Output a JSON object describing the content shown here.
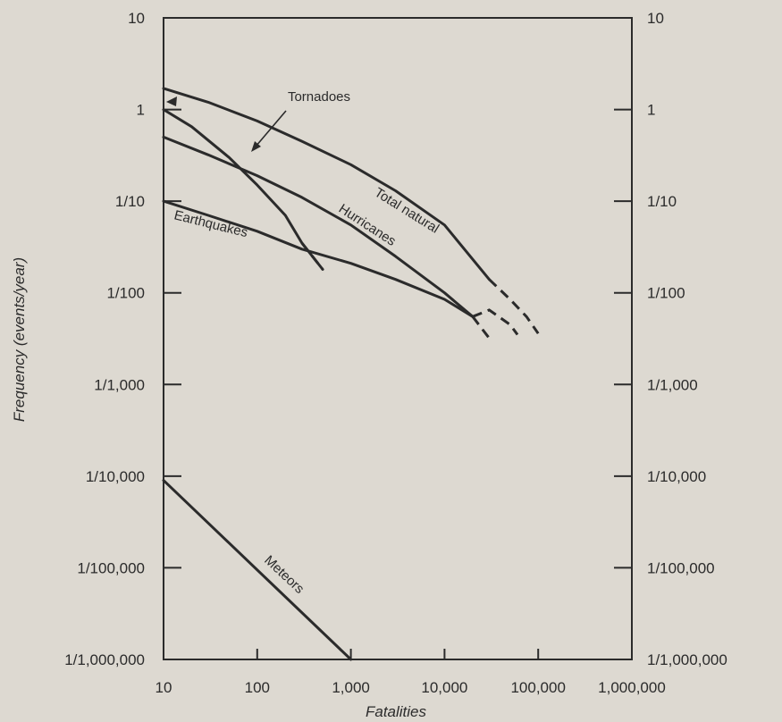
{
  "chart_data": {
    "type": "line",
    "title": "",
    "xlabel": "Fatalities",
    "ylabel": "Frequency (events/year)",
    "x_scale": "log",
    "y_scale": "log",
    "xlim": [
      10,
      1000000
    ],
    "ylim": [
      1e-06,
      10
    ],
    "x_ticks": [
      {
        "value": 10,
        "label": "10"
      },
      {
        "value": 100,
        "label": "100"
      },
      {
        "value": 1000,
        "label": "1,000"
      },
      {
        "value": 10000,
        "label": "10,000"
      },
      {
        "value": 100000,
        "label": "100,000"
      },
      {
        "value": 1000000,
        "label": "1,000,000"
      }
    ],
    "y_ticks": [
      {
        "value": 10,
        "label": "10"
      },
      {
        "value": 1,
        "label": "1"
      },
      {
        "value": 0.1,
        "label": "1/10"
      },
      {
        "value": 0.01,
        "label": "1/100"
      },
      {
        "value": 0.001,
        "label": "1/1,000"
      },
      {
        "value": 0.0001,
        "label": "1/10,000"
      },
      {
        "value": 1e-05,
        "label": "1/100,000"
      },
      {
        "value": 1e-06,
        "label": "1/1,000,000"
      }
    ],
    "grid": false,
    "series": [
      {
        "name": "Total natural",
        "x": [
          10,
          30,
          100,
          300,
          1000,
          3000,
          10000,
          30000
        ],
        "y": [
          1.7,
          1.2,
          0.75,
          0.45,
          0.25,
          0.13,
          0.055,
          0.014
        ],
        "dashed_x": [
          30000,
          50000,
          75000,
          100000
        ],
        "dashed_y": [
          0.014,
          0.0085,
          0.0055,
          0.0036
        ]
      },
      {
        "name": "Hurricanes",
        "x": [
          10,
          30,
          100,
          300,
          1000,
          3000,
          10000,
          20000
        ],
        "y": [
          0.5,
          0.32,
          0.19,
          0.11,
          0.055,
          0.025,
          0.01,
          0.0055
        ],
        "dashed_x": [
          20000,
          30000,
          50000,
          60000
        ],
        "dashed_y": [
          0.0055,
          0.0065,
          0.0045,
          0.0035
        ]
      },
      {
        "name": "Tornadoes",
        "x": [
          10,
          20,
          50,
          100,
          200,
          300,
          500
        ],
        "y": [
          1,
          0.65,
          0.3,
          0.15,
          0.07,
          0.035,
          0.018
        ],
        "dashed_x": [
          300,
          500
        ],
        "dashed_y": [
          0.035,
          0.018
        ]
      },
      {
        "name": "Earthquakes",
        "x": [
          10,
          30,
          100,
          300,
          1000,
          3000,
          10000,
          20000
        ],
        "y": [
          0.1,
          0.07,
          0.047,
          0.03,
          0.021,
          0.014,
          0.0085,
          0.0055
        ],
        "dashed_x": [
          20000,
          30000
        ],
        "dashed_y": [
          0.0055,
          0.0032
        ]
      },
      {
        "name": "Meteors",
        "x": [
          10,
          1000
        ],
        "y": [
          9e-05,
          1e-06
        ]
      }
    ],
    "annotations": [
      "Tornadoes"
    ]
  }
}
